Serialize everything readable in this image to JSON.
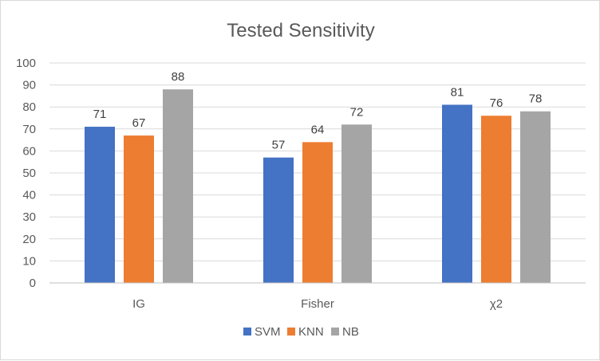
{
  "chart_data": {
    "type": "bar",
    "title": "Tested Sensitivity",
    "categories": [
      "IG",
      "Fisher",
      "χ2"
    ],
    "series": [
      {
        "name": "SVM",
        "color": "#4472C4",
        "values": [
          71,
          57,
          81
        ]
      },
      {
        "name": "KNN",
        "color": "#ED7D31",
        "values": [
          67,
          64,
          76
        ]
      },
      {
        "name": "NB",
        "color": "#A5A5A5",
        "values": [
          88,
          72,
          78
        ]
      }
    ],
    "ylim": [
      0,
      100
    ],
    "yticks": [
      0,
      10,
      20,
      30,
      40,
      50,
      60,
      70,
      80,
      90,
      100
    ],
    "xlabel": "",
    "ylabel": "",
    "grid": true,
    "legend": "bottom",
    "data_labels": true
  }
}
